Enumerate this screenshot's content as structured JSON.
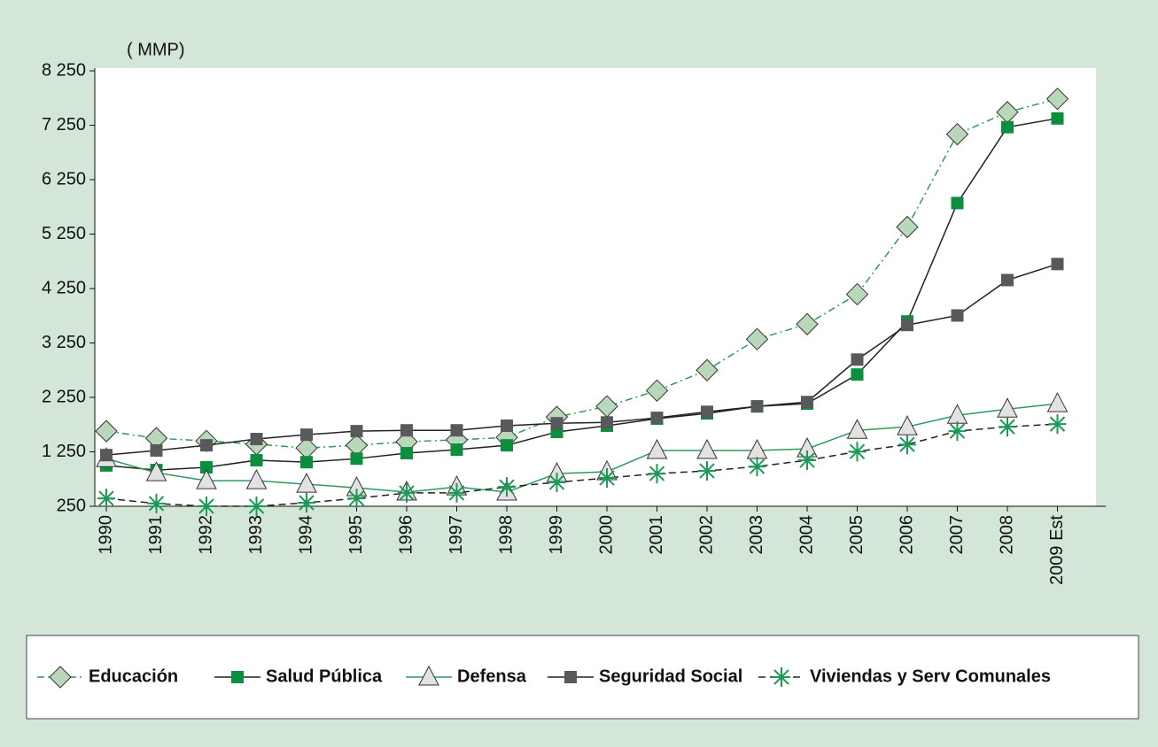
{
  "chart_data": {
    "type": "line",
    "y_label": "( MMP)",
    "categories": [
      "1990",
      "1991",
      "1992",
      "1993",
      "1994",
      "1995",
      "1996",
      "1997",
      "1998",
      "1999",
      "2000",
      "2001",
      "2002",
      "2003",
      "2004",
      "2005",
      "2006",
      "2007",
      "2008",
      "2009 Est"
    ],
    "ylim": [
      250,
      8250
    ],
    "yticks": [
      {
        "value": 250,
        "label": "250"
      },
      {
        "value": 1250,
        "label": "1 250"
      },
      {
        "value": 2250,
        "label": "2 250"
      },
      {
        "value": 3250,
        "label": "3 250"
      },
      {
        "value": 4250,
        "label": "4 250"
      },
      {
        "value": 5250,
        "label": "5 250"
      },
      {
        "value": 6250,
        "label": "6 250"
      },
      {
        "value": 7250,
        "label": "7 250"
      },
      {
        "value": 8250,
        "label": "8 250"
      }
    ],
    "legend": "bottom",
    "series": [
      {
        "name": "Educación",
        "color": "#b9d8b9",
        "line_color": "#2e9a5a",
        "dash": "dashdot",
        "marker": "diamond",
        "values": [
          1630,
          1500,
          1450,
          1390,
          1320,
          1370,
          1435,
          1470,
          1515,
          1890,
          2085,
          2375,
          2750,
          3320,
          3595,
          4145,
          5380,
          7085,
          7490,
          7735
        ]
      },
      {
        "name": "Salud Pública",
        "color": "#0b8e3e",
        "line_color": "#222222",
        "dash": "solid",
        "marker": "square",
        "values": [
          1000,
          915,
          965,
          1095,
          1060,
          1125,
          1225,
          1290,
          1370,
          1615,
          1730,
          1860,
          1955,
          2085,
          2135,
          2670,
          3645,
          5820,
          7215,
          7375
        ]
      },
      {
        "name": "Defensa",
        "color": "#e2e2e2",
        "line_color": "#2e9a5a",
        "dash": "solid",
        "marker": "triangle",
        "values": [
          1125,
          865,
          720,
          720,
          655,
          590,
          510,
          605,
          510,
          850,
          885,
          1275,
          1275,
          1275,
          1305,
          1645,
          1710,
          1920,
          2035,
          2135
        ]
      },
      {
        "name": "Seguridad Social",
        "color": "#58595b",
        "line_color": "#222222",
        "dash": "solid",
        "marker": "square",
        "values": [
          1190,
          1275,
          1370,
          1485,
          1565,
          1630,
          1645,
          1645,
          1730,
          1775,
          1790,
          1875,
          1985,
          2085,
          2165,
          2945,
          3580,
          3755,
          4405,
          4700
        ]
      },
      {
        "name": "Viviendas y Serv Comunales",
        "color": "#1a9a55",
        "line_color": "#222222",
        "dash": "dashed",
        "marker": "asterisk",
        "values": [
          395,
          300,
          250,
          250,
          315,
          395,
          495,
          495,
          605,
          690,
          770,
          850,
          900,
          980,
          1095,
          1255,
          1385,
          1630,
          1710,
          1760
        ]
      }
    ]
  }
}
